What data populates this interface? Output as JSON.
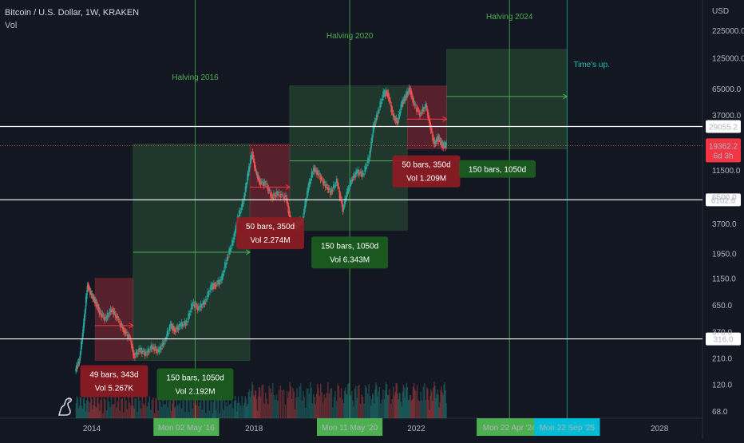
{
  "header": {
    "title": "Bitcoin / U.S. Dollar, 1W, KRAKEN",
    "subtitle": "Vol",
    "currency": "USD"
  },
  "colors": {
    "background": "#131722",
    "up": "#26a69a",
    "down": "#ef5350",
    "green_box": "rgba(76,175,80,0.22)",
    "red_box": "rgba(242,54,69,0.30)",
    "halving_line": "#4caf50",
    "time_up_line": "#22ab94",
    "hline": "#ffffff"
  },
  "icons": {
    "logo": "tradingview-dino-icon"
  },
  "chart_data": {
    "type": "candlestick",
    "title": "Bitcoin / U.S. Dollar, 1W, KRAKEN",
    "y_scale": "log",
    "ylabel": "USD",
    "y_ticks": [
      68.0,
      120.0,
      210.0,
      370.0,
      650.0,
      1150.0,
      1950.0,
      3700.0,
      6500.0,
      11500.0,
      21000.0,
      37000.0,
      65000.0,
      125000.0,
      225000.0
    ],
    "x_ticks": [
      {
        "label": "2014",
        "t": 2014.0
      },
      {
        "label": "2018",
        "t": 2018.0
      },
      {
        "label": "2022",
        "t": 2022.0
      },
      {
        "label": "2028",
        "t": 2028.0
      }
    ],
    "x_range": [
      2014.0,
      2028.0
    ],
    "price_path": [
      [
        2013.6,
        160
      ],
      [
        2013.7,
        200
      ],
      [
        2013.8,
        400
      ],
      [
        2013.9,
        1000
      ],
      [
        2014.0,
        800
      ],
      [
        2014.1,
        700
      ],
      [
        2014.2,
        560
      ],
      [
        2014.35,
        480
      ],
      [
        2014.5,
        600
      ],
      [
        2014.65,
        480
      ],
      [
        2014.8,
        380
      ],
      [
        2014.95,
        320
      ],
      [
        2015.05,
        220
      ],
      [
        2015.2,
        250
      ],
      [
        2015.35,
        230
      ],
      [
        2015.5,
        270
      ],
      [
        2015.65,
        240
      ],
      [
        2015.8,
        300
      ],
      [
        2015.95,
        420
      ],
      [
        2016.05,
        380
      ],
      [
        2016.2,
        420
      ],
      [
        2016.35,
        450
      ],
      [
        2016.5,
        680
      ],
      [
        2016.65,
        600
      ],
      [
        2016.8,
        700
      ],
      [
        2016.95,
        950
      ],
      [
        2017.05,
        1000
      ],
      [
        2017.2,
        1100
      ],
      [
        2017.35,
        1800
      ],
      [
        2017.5,
        2600
      ],
      [
        2017.6,
        4000
      ],
      [
        2017.75,
        6000
      ],
      [
        2017.85,
        10000
      ],
      [
        2017.96,
        17000
      ],
      [
        2018.05,
        11000
      ],
      [
        2018.15,
        9000
      ],
      [
        2018.3,
        8500
      ],
      [
        2018.45,
        6500
      ],
      [
        2018.6,
        7000
      ],
      [
        2018.8,
        6400
      ],
      [
        2018.92,
        3700
      ],
      [
        2019.05,
        3500
      ],
      [
        2019.2,
        4000
      ],
      [
        2019.35,
        8000
      ],
      [
        2019.48,
        12000
      ],
      [
        2019.6,
        10500
      ],
      [
        2019.75,
        8500
      ],
      [
        2019.9,
        7200
      ],
      [
        2020.05,
        9000
      ],
      [
        2020.2,
        5000
      ],
      [
        2020.3,
        7000
      ],
      [
        2020.42,
        9500
      ],
      [
        2020.55,
        11000
      ],
      [
        2020.7,
        10500
      ],
      [
        2020.85,
        15000
      ],
      [
        2020.95,
        28000
      ],
      [
        2021.05,
        38000
      ],
      [
        2021.2,
        58000
      ],
      [
        2021.3,
        60000
      ],
      [
        2021.45,
        35000
      ],
      [
        2021.55,
        32000
      ],
      [
        2021.65,
        47000
      ],
      [
        2021.75,
        55000
      ],
      [
        2021.85,
        65000
      ],
      [
        2021.95,
        47000
      ],
      [
        2022.1,
        38000
      ],
      [
        2022.25,
        45000
      ],
      [
        2022.35,
        30000
      ],
      [
        2022.45,
        20000
      ],
      [
        2022.55,
        23000
      ],
      [
        2022.65,
        19500
      ],
      [
        2022.75,
        19500
      ]
    ],
    "vertical_lines": [
      {
        "label": "Halving 2016",
        "t": 2016.55
      },
      {
        "label": "Halving 2020",
        "t": 2020.36
      },
      {
        "label": "Halving 2024",
        "t": 2024.3
      },
      {
        "label": "Time's up.",
        "t": 2025.72
      }
    ],
    "horizontal_lines": [
      {
        "label": "29055.2",
        "value": 29055.2
      },
      {
        "label": "6102.6",
        "value": 6102.6
      },
      {
        "label": "316.0",
        "value": 316.0
      }
    ],
    "current_price": {
      "label": "19362.2",
      "countdown": "6d 3h",
      "value": 19362.2
    },
    "boxes": [
      {
        "kind": "down",
        "t0": 2014.08,
        "t1": 2015.02,
        "low": 200,
        "high": 1150,
        "mid": 420,
        "bars": "49 bars, 343d",
        "vol": "Vol 5.267K"
      },
      {
        "kind": "up",
        "t0": 2015.02,
        "t1": 2017.9,
        "low": 200,
        "high": 20000,
        "mid": 2000,
        "bars": "150 bars, 1050d",
        "vol": "Vol 2.192M"
      },
      {
        "kind": "down",
        "t0": 2017.9,
        "t1": 2018.88,
        "low": 3700,
        "high": 20000,
        "mid": 8000,
        "bars": "50 bars, 350d",
        "vol": "Vol 2.274M"
      },
      {
        "kind": "up",
        "t0": 2018.88,
        "t1": 2021.78,
        "low": 3200,
        "high": 69000,
        "mid": 14000,
        "bars": "150 bars, 1050d",
        "vol": "Vol 6.343M"
      },
      {
        "kind": "down",
        "t0": 2021.78,
        "t1": 2022.75,
        "low": 18000,
        "high": 69000,
        "mid": 34000,
        "bars": "50 bars, 350d",
        "vol": "Vol 1.209M"
      },
      {
        "kind": "up",
        "t0": 2022.75,
        "t1": 2025.72,
        "low": 18000,
        "high": 150000,
        "mid": 55000,
        "bars": "150 bars, 1050d",
        "vol": ""
      }
    ],
    "date_badges": [
      {
        "label": "Mon 02 May '16",
        "t": 2016.33,
        "color": "#4caf50"
      },
      {
        "label": "Mon 11 May '20",
        "t": 2020.36,
        "color": "#4caf50"
      },
      {
        "label": "Mon 22 Apr '24",
        "t": 2024.3,
        "color": "#4caf50"
      },
      {
        "label": "Mon 22 Sep '25",
        "t": 2025.72,
        "color": "#00bcd4"
      }
    ]
  }
}
